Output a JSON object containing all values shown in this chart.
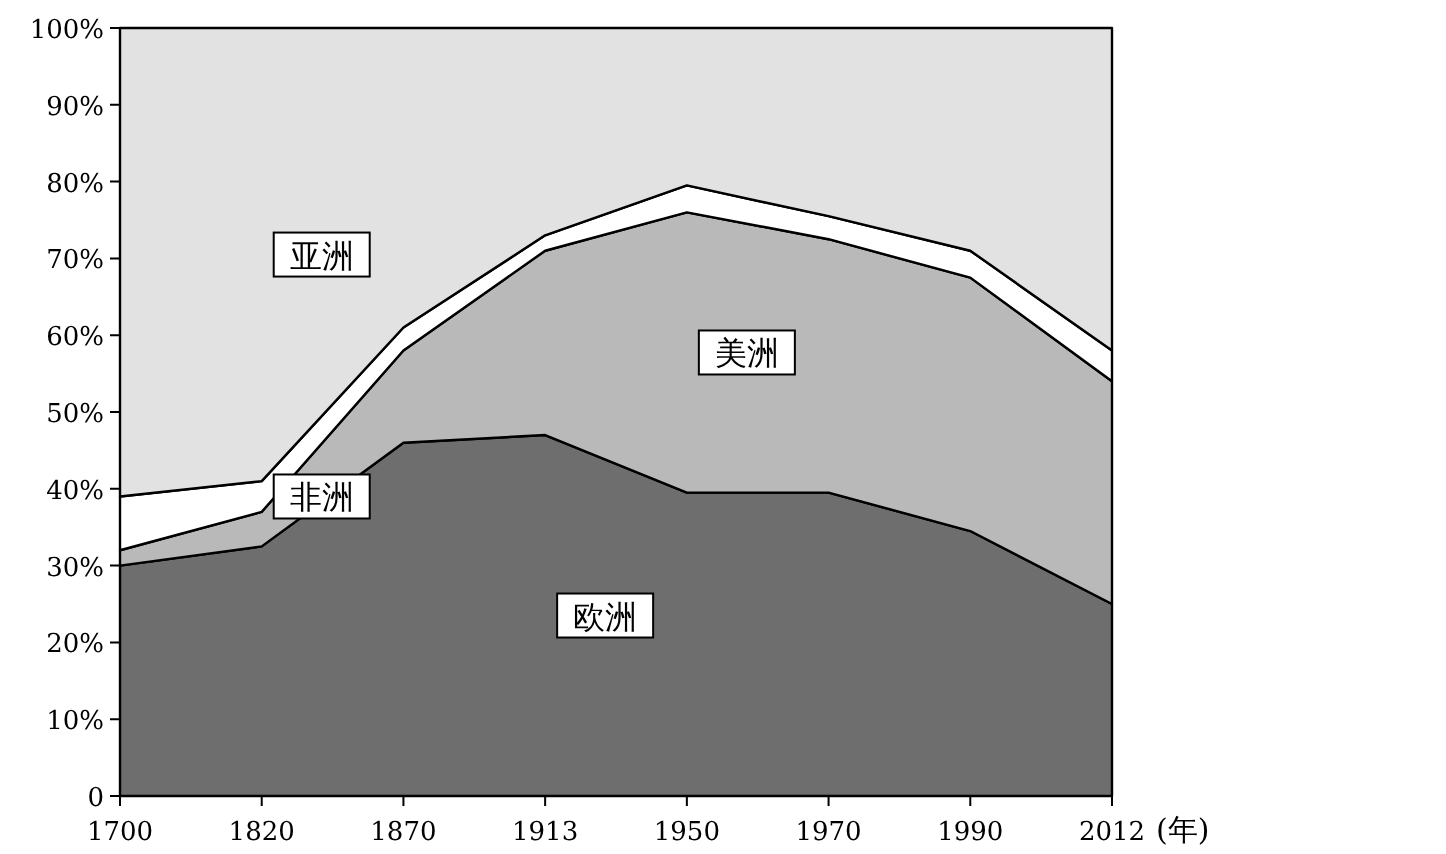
{
  "chart_data": {
    "type": "area",
    "stacked": true,
    "xlabel": "(年)",
    "categories": [
      "1700",
      "1820",
      "1870",
      "1913",
      "1950",
      "1970",
      "1990",
      "2012"
    ],
    "ylim": [
      0,
      100
    ],
    "yticks": [
      0,
      {
        "value": 10,
        "label": "10%"
      },
      {
        "value": 20,
        "label": "20%"
      },
      {
        "value": 30,
        "label": "30%"
      },
      {
        "value": 40,
        "label": "40%"
      },
      {
        "value": 50,
        "label": "50%"
      },
      {
        "value": 60,
        "label": "60%"
      },
      {
        "value": 70,
        "label": "70%"
      },
      {
        "value": 80,
        "label": "80%"
      },
      {
        "value": 90,
        "label": "90%"
      },
      {
        "value": 100,
        "label": "100%"
      }
    ],
    "grid": false,
    "series": [
      {
        "name": "欧洲",
        "color": "#6e6e6e",
        "values": [
          30,
          32.5,
          46,
          47,
          39.5,
          39.5,
          34.5,
          25
        ]
      },
      {
        "name": "美洲",
        "color": "#b9b9b9",
        "values": [
          2,
          4.5,
          12,
          24,
          36.5,
          33,
          33,
          29
        ]
      },
      {
        "name": "非洲",
        "color": "#ffffff",
        "values": [
          7,
          4,
          3,
          2,
          3.5,
          3,
          3.5,
          4
        ]
      },
      {
        "name": "亚洲",
        "color": "#e2e2e2",
        "values": [
          61,
          59,
          39,
          27,
          20.5,
          24.5,
          29,
          42
        ]
      }
    ]
  }
}
